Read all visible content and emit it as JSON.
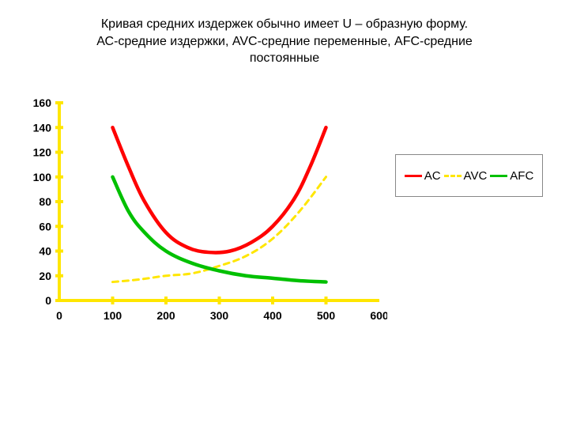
{
  "title_lines": [
    "Кривая средних издержек обычно имеет U – образную форму.",
    "АС-средние издержки, AVC-средние переменные, AFC-средние",
    "постоянные"
  ],
  "chart": {
    "type": "line",
    "background_color": "#ffffff",
    "axis_color": "#ffe600",
    "axis_width": 4,
    "tick_size": 10,
    "xlim": [
      0,
      600
    ],
    "ylim": [
      0,
      160
    ],
    "x_ticks": [
      0,
      100,
      200,
      300,
      400,
      500,
      600
    ],
    "y_ticks": [
      0,
      20,
      40,
      60,
      80,
      100,
      120,
      140,
      160
    ],
    "x_tick_major": [
      100,
      200,
      300,
      400,
      500
    ],
    "label_fontsize": 14,
    "label_fontweight": "bold",
    "series": {
      "AC": {
        "label": "AC",
        "color": "#ff0000",
        "width": 4.5,
        "dash": null,
        "points": [
          [
            100,
            140
          ],
          [
            130,
            108
          ],
          [
            160,
            80
          ],
          [
            200,
            55
          ],
          [
            240,
            43
          ],
          [
            280,
            39
          ],
          [
            320,
            40
          ],
          [
            360,
            47
          ],
          [
            400,
            60
          ],
          [
            440,
            82
          ],
          [
            470,
            108
          ],
          [
            500,
            140
          ]
        ]
      },
      "AVC": {
        "label": "AVC",
        "color": "#ffe600",
        "width": 3,
        "dash": "7 6",
        "points": [
          [
            100,
            15
          ],
          [
            150,
            17
          ],
          [
            200,
            20
          ],
          [
            250,
            22
          ],
          [
            300,
            28
          ],
          [
            350,
            36
          ],
          [
            400,
            50
          ],
          [
            450,
            72
          ],
          [
            500,
            100
          ]
        ]
      },
      "AFC": {
        "label": "AFC",
        "color": "#00c000",
        "width": 4.5,
        "dash": null,
        "points": [
          [
            100,
            100
          ],
          [
            130,
            72
          ],
          [
            160,
            55
          ],
          [
            200,
            40
          ],
          [
            250,
            30
          ],
          [
            300,
            24
          ],
          [
            350,
            20
          ],
          [
            400,
            18
          ],
          [
            450,
            16
          ],
          [
            500,
            15
          ]
        ]
      }
    },
    "legend": {
      "border_color": "#888888",
      "order": [
        "AC",
        "AVC",
        "AFC"
      ],
      "fontsize": 15
    }
  }
}
